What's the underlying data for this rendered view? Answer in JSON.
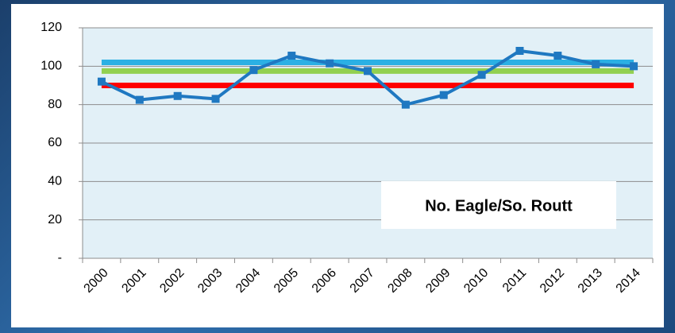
{
  "chart_data": {
    "type": "line",
    "categories": [
      "2000",
      "2001",
      "2002",
      "2003",
      "2004",
      "2005",
      "2006",
      "2007",
      "2008",
      "2009",
      "2010",
      "2011",
      "2012",
      "2013",
      "2014"
    ],
    "series": [
      {
        "color": "#2bb0e4",
        "values": [
          102,
          102,
          102,
          102,
          102,
          102,
          102,
          102,
          102,
          102,
          102,
          102,
          102,
          102,
          102
        ]
      },
      {
        "color": "#92d050",
        "values": [
          97.5,
          97.5,
          97.5,
          97.5,
          97.5,
          97.5,
          97.5,
          97.5,
          97.5,
          97.5,
          97.5,
          97.5,
          97.5,
          97.5,
          97.5
        ]
      },
      {
        "color": "#ff0000",
        "values": [
          90,
          90,
          90,
          90,
          90,
          90,
          90,
          90,
          90,
          90,
          90,
          90,
          90,
          90,
          90
        ]
      },
      {
        "color": "#1f78c1",
        "values": [
          92,
          82.5,
          84.5,
          83,
          98,
          105.5,
          101.5,
          97.5,
          80,
          85,
          95.5,
          108,
          105.5,
          101,
          100
        ],
        "markers": true
      }
    ],
    "ylim": [
      0,
      120
    ],
    "yticks": [
      {
        "value": 0,
        "label": "-"
      },
      20,
      40,
      60,
      80,
      100,
      120
    ],
    "grid": true,
    "annotation": "No. Eagle/So. Routt"
  }
}
